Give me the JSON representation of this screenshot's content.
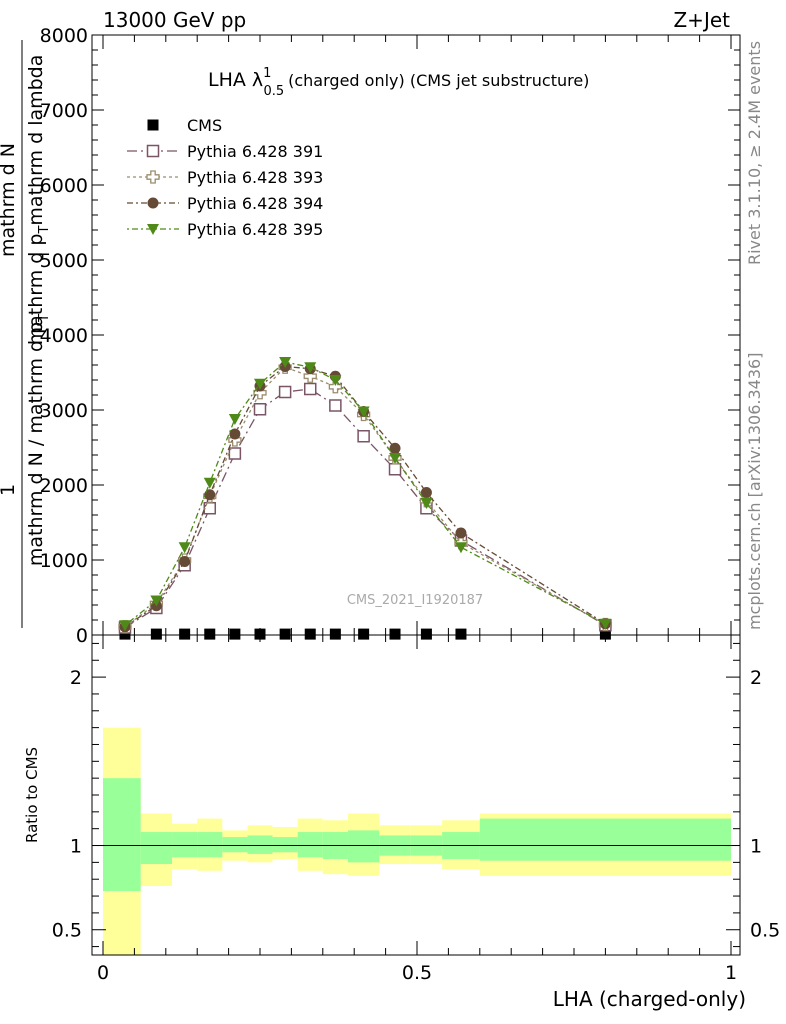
{
  "header": {
    "left": "13000 GeV pp",
    "right": "Z+Jet"
  },
  "side_labels": {
    "rivet": "Rivet 3.1.10, ≥ 2.4M events",
    "mcplots": "mcplots.cern.ch [arXiv:1306.3436]"
  },
  "chart_data": [
    {
      "type": "line",
      "title": "LHA λ",
      "title_sup": "1",
      "title_sub": "0.5",
      "title_rest": "(charged only) (CMS jet substructure)",
      "ylabel_parts": [
        "1",
        "mathrm d N / mathrm d p",
        "T",
        "mathrm d N",
        "mathrm d p",
        "T",
        "mathrm d lambda"
      ],
      "watermark": "CMS_2021_I1920187",
      "xlim": [
        0,
        1
      ],
      "ylim": [
        0,
        8000
      ],
      "yticks": [
        0,
        1000,
        2000,
        3000,
        4000,
        5000,
        6000,
        7000,
        8000
      ],
      "legend_position": "top-left",
      "series": [
        {
          "name": "CMS",
          "color": "#000000",
          "marker": "square-filled",
          "x": [
            0.035,
            0.085,
            0.13,
            0.17,
            0.21,
            0.25,
            0.29,
            0.33,
            0.37,
            0.415,
            0.465,
            0.515,
            0.57,
            0.8
          ],
          "y": [
            12,
            12,
            12,
            12,
            12,
            12,
            12,
            12,
            12,
            12,
            12,
            12,
            12,
            12
          ]
        },
        {
          "name": "Pythia 6.428 391",
          "color": "#7a5566",
          "marker": "square-open",
          "dash": "10,4,2,4",
          "x": [
            0.035,
            0.085,
            0.13,
            0.17,
            0.21,
            0.25,
            0.29,
            0.33,
            0.37,
            0.415,
            0.465,
            0.515,
            0.57,
            0.8
          ],
          "y": [
            100,
            360,
            930,
            1690,
            2420,
            3010,
            3240,
            3280,
            3060,
            2650,
            2210,
            1690,
            1260,
            130
          ]
        },
        {
          "name": "Pythia 6.428 393",
          "color": "#9b8c6e",
          "marker": "cross-open",
          "dash": "3,3",
          "x": [
            0.035,
            0.085,
            0.13,
            0.17,
            0.21,
            0.25,
            0.29,
            0.33,
            0.37,
            0.415,
            0.465,
            0.515,
            0.57,
            0.8
          ],
          "y": [
            110,
            420,
            1000,
            1850,
            2600,
            3230,
            3570,
            3450,
            3310,
            2940,
            2360,
            1790,
            1230,
            140
          ]
        },
        {
          "name": "Pythia 6.428 394",
          "color": "#654a35",
          "marker": "circle-filled",
          "dash": "6,3,2,3",
          "x": [
            0.035,
            0.085,
            0.13,
            0.17,
            0.21,
            0.25,
            0.29,
            0.33,
            0.37,
            0.415,
            0.465,
            0.515,
            0.57,
            0.8
          ],
          "y": [
            110,
            390,
            980,
            1870,
            2680,
            3320,
            3580,
            3550,
            3450,
            2980,
            2490,
            1900,
            1360,
            150
          ]
        },
        {
          "name": "Pythia 6.428 395",
          "color": "#4f8a18",
          "marker": "triangle-down",
          "dash": "2,3,6,3",
          "x": [
            0.035,
            0.085,
            0.13,
            0.17,
            0.21,
            0.25,
            0.29,
            0.33,
            0.37,
            0.415,
            0.465,
            0.515,
            0.57,
            0.8
          ],
          "y": [
            130,
            460,
            1170,
            2030,
            2880,
            3350,
            3640,
            3570,
            3400,
            2980,
            2360,
            1760,
            1170,
            150
          ]
        }
      ]
    },
    {
      "type": "area",
      "xlabel": "LHA (charged-only)",
      "ylabel": "Ratio to CMS",
      "xlim": [
        0,
        1
      ],
      "ylim": [
        0.35,
        2.25
      ],
      "yticks": [
        0.5,
        1,
        2
      ],
      "xticks": [
        0,
        0.5,
        1
      ],
      "reference_line": 1,
      "bins": [
        0,
        0.06,
        0.11,
        0.15,
        0.19,
        0.23,
        0.27,
        0.31,
        0.35,
        0.39,
        0.44,
        0.49,
        0.54,
        0.6,
        1.0
      ],
      "band_outer": {
        "color": "#ffff99",
        "lo": [
          0.35,
          0.76,
          0.86,
          0.85,
          0.91,
          0.9,
          0.92,
          0.85,
          0.83,
          0.82,
          0.89,
          0.89,
          0.86,
          0.82
        ],
        "hi": [
          1.7,
          1.19,
          1.13,
          1.16,
          1.09,
          1.12,
          1.11,
          1.16,
          1.15,
          1.19,
          1.12,
          1.12,
          1.15,
          1.19
        ]
      },
      "band_inner": {
        "color": "#99ff99",
        "lo": [
          0.73,
          0.89,
          0.93,
          0.93,
          0.96,
          0.95,
          0.96,
          0.93,
          0.92,
          0.9,
          0.94,
          0.94,
          0.92,
          0.91
        ],
        "hi": [
          1.4,
          1.08,
          1.08,
          1.08,
          1.05,
          1.06,
          1.05,
          1.08,
          1.08,
          1.09,
          1.06,
          1.06,
          1.08,
          1.16
        ]
      }
    }
  ]
}
